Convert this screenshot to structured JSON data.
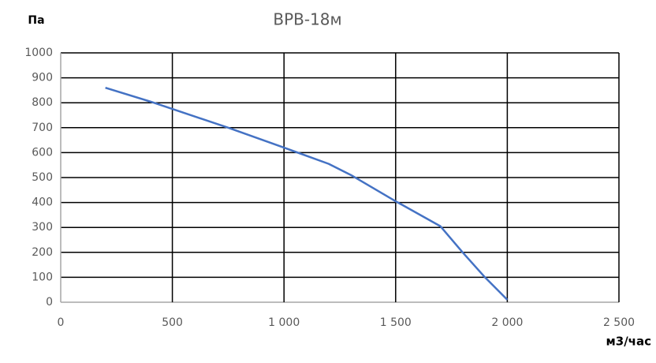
{
  "chart_data": {
    "type": "line",
    "title": "ВРВ-18м",
    "y_label": "Па",
    "x_label": "м3/час",
    "x": [
      200,
      400,
      500,
      750,
      1000,
      1200,
      1300,
      1500,
      1700,
      1800,
      1900,
      2000
    ],
    "series": [
      {
        "name": "ВРВ-18м",
        "color": "#4472c4",
        "values": [
          860,
          805,
          775,
          700,
          620,
          555,
          510,
          405,
          305,
          200,
          100,
          10
        ]
      }
    ],
    "xlim": [
      0,
      2500
    ],
    "xticks": [
      0,
      500,
      {
        "value": 1000,
        "label": "1 000"
      },
      {
        "value": 1500,
        "label": "1 500"
      },
      {
        "value": 2000,
        "label": "2 000"
      },
      {
        "value": 2500,
        "label": "2 500"
      }
    ],
    "ylim": [
      0,
      1000
    ],
    "yticks": [
      0,
      100,
      200,
      300,
      400,
      500,
      600,
      700,
      800,
      900,
      1000
    ],
    "grid": true
  }
}
